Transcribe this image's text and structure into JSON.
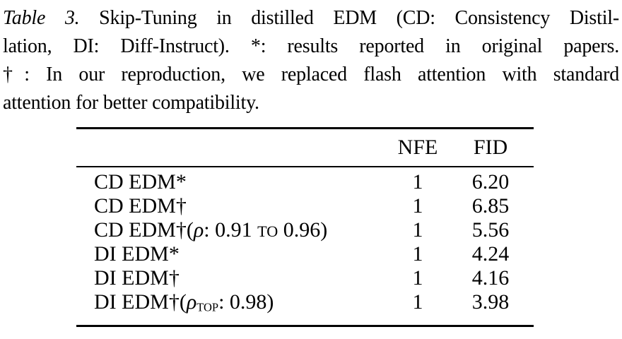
{
  "caption": {
    "label": "Table 3.",
    "line1_rest": "Skip-Tuning in distilled EDM (CD: Consistency Distil-",
    "line2": "lation, DI: Diff-Instruct). *: results reported in original papers.",
    "line3": "†: In our reproduction, we replaced flash attention with standard",
    "line4": "attention for better compatibility."
  },
  "table": {
    "columns": [
      "NFE",
      "FID"
    ],
    "rows": [
      {
        "label_parts": [
          {
            "t": "CD EDM*",
            "s": "plain"
          }
        ],
        "nfe": "1",
        "fid": "6.20"
      },
      {
        "label_parts": [
          {
            "t": "CD EDM†",
            "s": "plain"
          }
        ],
        "nfe": "1",
        "fid": "6.85"
      },
      {
        "label_parts": [
          {
            "t": "CD EDM†(",
            "s": "plain"
          },
          {
            "t": "ρ",
            "s": "italic"
          },
          {
            "t": ": 0.91 ",
            "s": "plain"
          },
          {
            "t": "TO",
            "s": "smallcaps"
          },
          {
            "t": " 0.96)",
            "s": "plain"
          }
        ],
        "nfe": "1",
        "fid": "5.56"
      },
      {
        "label_parts": [
          {
            "t": "DI EDM*",
            "s": "plain"
          }
        ],
        "nfe": "1",
        "fid": "4.24"
      },
      {
        "label_parts": [
          {
            "t": "DI EDM†",
            "s": "plain"
          }
        ],
        "nfe": "1",
        "fid": "4.16"
      },
      {
        "label_parts": [
          {
            "t": "DI EDM†(",
            "s": "plain"
          },
          {
            "t": "ρ",
            "s": "italic"
          },
          {
            "t": "TOP",
            "s": "subsc"
          },
          {
            "t": ": 0.98)",
            "s": "plain"
          }
        ],
        "nfe": "1",
        "fid": "3.98"
      }
    ]
  },
  "colors": {
    "text": "#000000",
    "background": "#ffffff",
    "rule": "#000000"
  }
}
